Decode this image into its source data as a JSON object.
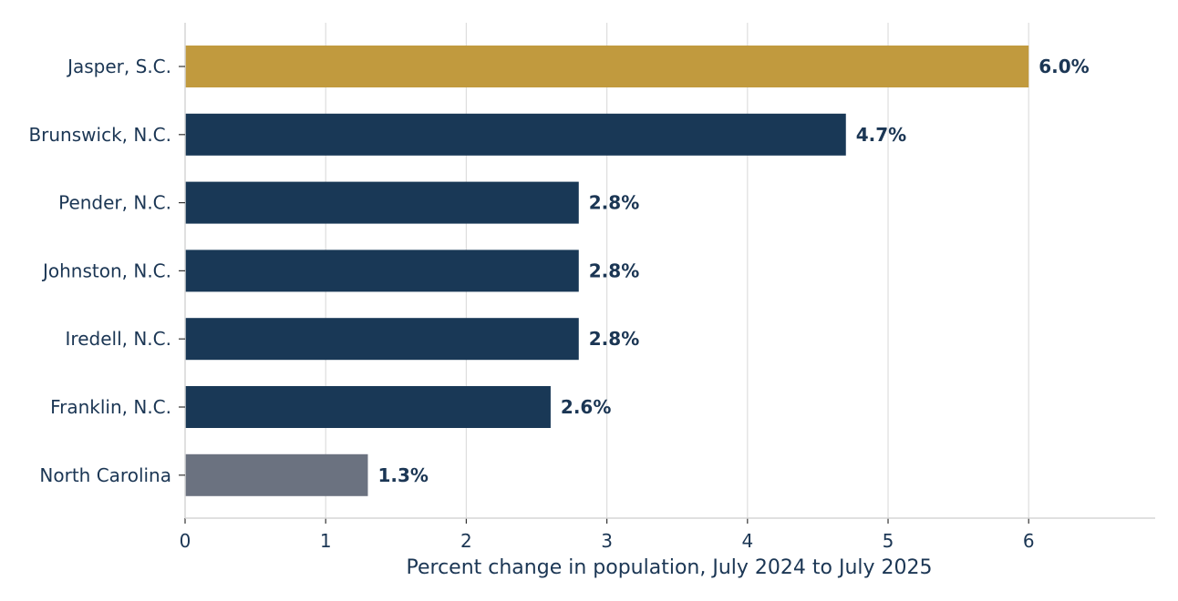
{
  "chart_data": {
    "type": "bar",
    "orientation": "horizontal",
    "title": "",
    "xlabel": "Percent change in population, July 2024 to July 2025",
    "ylabel": "",
    "xlim": [
      0,
      6.9
    ],
    "xticks": [
      0,
      1,
      2,
      3,
      4,
      5,
      6
    ],
    "grid": "vertical",
    "categories": [
      "Jasper, S.C.",
      "Brunswick, N.C.",
      "Pender, N.C.",
      "Johnston, N.C.",
      "Iredell, N.C.",
      "Franklin, N.C.",
      "North Carolina"
    ],
    "values": [
      6.0,
      4.7,
      2.8,
      2.8,
      2.8,
      2.6,
      1.3
    ],
    "value_labels": [
      "6.0%",
      "4.7%",
      "2.8%",
      "2.8%",
      "2.8%",
      "2.6%",
      "1.3%"
    ],
    "bar_colors": [
      "#c19a3e",
      "#193856",
      "#193856",
      "#193856",
      "#193856",
      "#193856",
      "#6b7280"
    ]
  }
}
